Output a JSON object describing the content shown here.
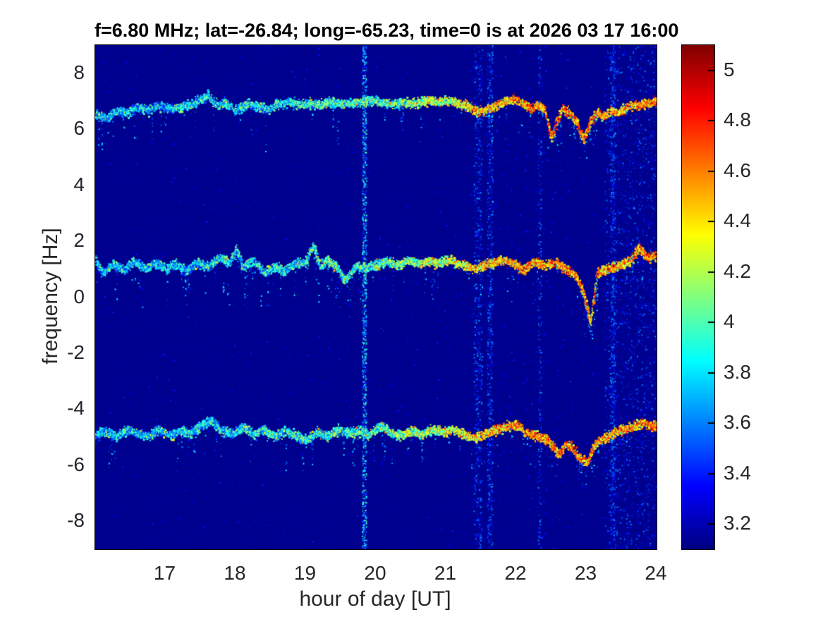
{
  "chart_data": {
    "type": "heatmap",
    "title": "f=6.80 MHz;  lat=-26.84; long=-65.23, time=0 is at 2026 03 17 16:00",
    "xlabel": "hour of day [UT]",
    "ylabel": "frequency [Hz]",
    "xlim": [
      16,
      24
    ],
    "ylim": [
      -9,
      9
    ],
    "xticks": [
      17,
      18,
      19,
      20,
      21,
      22,
      23,
      24
    ],
    "yticks": [
      8,
      6,
      4,
      2,
      0,
      -2,
      -4,
      -6,
      -8
    ],
    "colormap": "jet",
    "colorbar": {
      "min": 3.1,
      "max": 5.1,
      "ticks": [
        5,
        4.8,
        4.6,
        4.4,
        4.2,
        4,
        3.8,
        3.6,
        3.4,
        3.2
      ]
    },
    "legend": "none",
    "grid": false,
    "noise_bands": [
      {
        "hour": 19.83,
        "width": 0.06,
        "strength": "strong"
      },
      {
        "hour": 21.45,
        "width": 0.12,
        "strength": "medium"
      },
      {
        "hour": 21.62,
        "width": 0.08,
        "strength": "medium"
      },
      {
        "hour": 22.33,
        "width": 0.05,
        "strength": "faint"
      },
      {
        "hour": 23.37,
        "width": 0.07,
        "strength": "medium"
      }
    ],
    "noise_region": {
      "from_hour": 23.25,
      "to_hour": 24.0
    },
    "intensity": {
      "x": [
        16,
        17,
        18,
        19,
        19.5,
        20,
        20.5,
        21,
        21.3,
        21.6,
        22,
        22.3,
        22.6,
        23,
        23.4,
        23.7,
        24
      ],
      "v": [
        3.7,
        3.72,
        3.78,
        3.85,
        3.9,
        3.95,
        4.05,
        4.2,
        4.35,
        4.4,
        4.45,
        4.5,
        4.55,
        4.5,
        4.45,
        4.5,
        4.6
      ]
    },
    "series": [
      {
        "name": "doppler-trace-upper",
        "x": [
          16.0,
          16.15,
          16.3,
          16.45,
          16.6,
          16.75,
          16.9,
          17.05,
          17.2,
          17.35,
          17.5,
          17.6,
          17.7,
          17.85,
          18.0,
          18.15,
          18.3,
          18.45,
          18.6,
          18.75,
          18.9,
          19.05,
          19.2,
          19.35,
          19.5,
          19.65,
          19.8,
          19.95,
          20.1,
          20.25,
          20.4,
          20.55,
          20.7,
          20.85,
          21.0,
          21.15,
          21.3,
          21.45,
          21.6,
          21.75,
          21.9,
          22.0,
          22.1,
          22.2,
          22.3,
          22.4,
          22.5,
          22.57,
          22.65,
          22.75,
          22.85,
          22.95,
          23.05,
          23.15,
          23.25,
          23.35,
          23.45,
          23.6,
          23.75,
          23.9,
          24.0
        ],
        "y": [
          6.55,
          6.4,
          6.7,
          6.6,
          6.8,
          6.7,
          6.85,
          6.75,
          6.8,
          6.9,
          7.1,
          7.25,
          6.9,
          6.95,
          6.7,
          6.95,
          6.85,
          6.75,
          6.9,
          7.0,
          6.9,
          6.95,
          6.9,
          7.0,
          6.9,
          6.95,
          7.0,
          7.05,
          6.95,
          6.9,
          7.0,
          6.95,
          7.05,
          7.0,
          7.05,
          6.95,
          6.85,
          6.65,
          6.75,
          6.9,
          7.1,
          7.05,
          6.9,
          6.75,
          6.9,
          6.7,
          5.7,
          6.3,
          6.75,
          6.6,
          6.3,
          5.65,
          6.3,
          6.6,
          6.45,
          6.7,
          6.6,
          6.85,
          6.9,
          6.95,
          7.0
        ]
      },
      {
        "name": "doppler-trace-middle",
        "x": [
          16.0,
          16.1,
          16.25,
          16.4,
          16.55,
          16.7,
          16.85,
          17.0,
          17.15,
          17.3,
          17.45,
          17.6,
          17.75,
          17.9,
          18.0,
          18.1,
          18.25,
          18.4,
          18.55,
          18.7,
          18.85,
          19.0,
          19.1,
          19.2,
          19.3,
          19.45,
          19.55,
          19.7,
          19.85,
          20.0,
          20.15,
          20.3,
          20.45,
          20.6,
          20.75,
          20.9,
          21.05,
          21.2,
          21.35,
          21.5,
          21.65,
          21.8,
          21.95,
          22.1,
          22.25,
          22.4,
          22.55,
          22.7,
          22.85,
          22.95,
          23.05,
          23.15,
          23.3,
          23.45,
          23.6,
          23.75,
          23.85,
          24.0
        ],
        "y": [
          1.35,
          0.85,
          1.2,
          1.0,
          1.3,
          1.05,
          1.25,
          1.05,
          1.2,
          0.95,
          1.25,
          1.1,
          1.45,
          1.2,
          1.8,
          1.1,
          1.35,
          0.9,
          1.1,
          1.0,
          1.2,
          1.3,
          1.9,
          1.1,
          1.35,
          1.05,
          0.6,
          1.15,
          1.05,
          1.2,
          1.3,
          1.15,
          1.35,
          1.2,
          1.3,
          1.25,
          1.35,
          1.2,
          1.05,
          1.15,
          1.25,
          1.35,
          1.25,
          1.0,
          1.3,
          1.15,
          1.25,
          1.05,
          0.75,
          0.2,
          -0.9,
          0.9,
          1.05,
          1.15,
          1.3,
          1.8,
          1.45,
          1.5
        ]
      },
      {
        "name": "doppler-trace-lower",
        "x": [
          16.0,
          16.15,
          16.3,
          16.45,
          16.6,
          16.75,
          16.9,
          17.05,
          17.2,
          17.35,
          17.5,
          17.65,
          17.8,
          17.95,
          18.1,
          18.25,
          18.4,
          18.55,
          18.7,
          18.85,
          19.0,
          19.15,
          19.3,
          19.45,
          19.6,
          19.75,
          19.9,
          20.05,
          20.2,
          20.35,
          20.5,
          20.65,
          20.8,
          20.95,
          21.1,
          21.25,
          21.4,
          21.55,
          21.7,
          21.85,
          22.0,
          22.15,
          22.3,
          22.45,
          22.6,
          22.7,
          22.8,
          22.9,
          23.0,
          23.1,
          23.2,
          23.35,
          23.5,
          23.65,
          23.8,
          23.9,
          24.0
        ],
        "y": [
          -4.9,
          -4.75,
          -4.95,
          -4.7,
          -4.85,
          -4.95,
          -4.7,
          -4.9,
          -4.75,
          -4.85,
          -4.55,
          -4.4,
          -4.75,
          -4.85,
          -4.6,
          -4.9,
          -4.7,
          -4.95,
          -4.75,
          -4.9,
          -5.1,
          -4.8,
          -4.95,
          -4.7,
          -4.85,
          -4.75,
          -4.9,
          -4.55,
          -4.8,
          -4.9,
          -4.75,
          -4.85,
          -4.7,
          -4.8,
          -4.65,
          -4.9,
          -5.0,
          -4.85,
          -4.7,
          -4.6,
          -4.55,
          -4.85,
          -4.95,
          -5.1,
          -5.6,
          -5.2,
          -5.4,
          -5.7,
          -5.9,
          -5.3,
          -5.05,
          -4.85,
          -4.7,
          -4.6,
          -4.45,
          -4.55,
          -4.6
        ]
      }
    ]
  }
}
